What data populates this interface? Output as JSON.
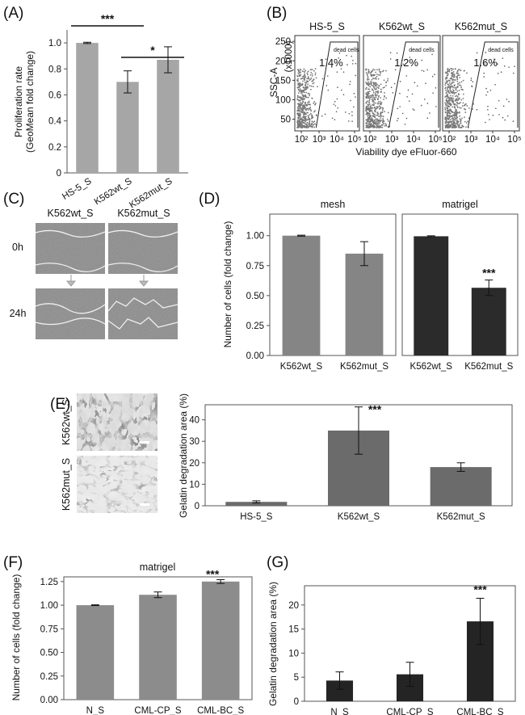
{
  "panels": {
    "A": "(A)",
    "B": "(B)",
    "C": "(C)",
    "D": "(D)",
    "E": "(E)",
    "F": "(F)",
    "G": "(G)"
  },
  "chart_data": [
    {
      "id": "A",
      "type": "bar",
      "categories": [
        "HS-5_S",
        "K562wt_S",
        "K562mut_S"
      ],
      "values": [
        1.0,
        0.7,
        0.87
      ],
      "errors": [
        0.005,
        0.085,
        0.1
      ],
      "ylabel": "Proliferation rate\n(GeoMean fold change)",
      "ylim": [
        0,
        1.1
      ],
      "yticks": [
        "0",
        "0.2",
        "0.4",
        "0.6",
        "0.8",
        "1.0"
      ],
      "ytick_values": [
        0,
        0.2,
        0.4,
        0.6,
        0.8,
        1.0
      ],
      "color": "#a6a6a6",
      "significance": [
        {
          "from": 0,
          "to": 1,
          "label": "***"
        },
        {
          "from": 1,
          "to": 2,
          "label": "*"
        }
      ]
    },
    {
      "id": "B",
      "type": "scatter",
      "samples": [
        {
          "name": "HS-5_S",
          "gate_label": "dead cells",
          "percent": "1.4%"
        },
        {
          "name": "K562wt_S",
          "gate_label": "dead cells",
          "percent": "1.2%"
        },
        {
          "name": "K562mut_S",
          "gate_label": "dead cells",
          "percent": "1.6%"
        }
      ],
      "ylabel": "SSC-A",
      "yunit": "(x1000)",
      "yticks": [
        "50",
        "100",
        "150",
        "200",
        "250"
      ],
      "ytick_values": [
        50,
        100,
        150,
        200,
        250
      ],
      "ylim": [
        20,
        265
      ],
      "xticks": [
        "10²",
        "10³",
        "10⁴",
        "10⁵"
      ],
      "xlabel": "Viability dye eFluor-660"
    },
    {
      "id": "D",
      "type": "bar",
      "subplots": [
        {
          "title": "mesh",
          "categories": [
            "K562wt_S",
            "K562mut_S"
          ],
          "values": [
            1.0,
            0.85
          ],
          "errors": [
            0.004,
            0.1
          ],
          "color": "#858585",
          "stars": [
            "",
            ""
          ]
        },
        {
          "title": "matrigel",
          "categories": [
            "K562wt_S",
            "K562mut_S"
          ],
          "values": [
            0.995,
            0.565
          ],
          "errors": [
            0.004,
            0.065
          ],
          "color": "#2b2b2b",
          "stars": [
            "",
            "***"
          ]
        }
      ],
      "ylabel": "Number of cells (fold change)",
      "ylim": [
        0,
        1.18
      ],
      "yticks": [
        "0.00",
        "0.25",
        "0.50",
        "0.75",
        "1.00"
      ],
      "ytick_values": [
        0,
        0.25,
        0.5,
        0.75,
        1.0
      ]
    },
    {
      "id": "E",
      "type": "bar",
      "categories": [
        "HS-5_S",
        "K562wt_S",
        "K562mut_S"
      ],
      "values": [
        1.8,
        35,
        18
      ],
      "errors": [
        0.5,
        11,
        2
      ],
      "stars": [
        "",
        "***",
        ""
      ],
      "ylabel": "Gelatin degradation area (%)",
      "ylim": [
        0,
        47
      ],
      "yticks": [
        "0",
        "10",
        "20",
        "30",
        "40"
      ],
      "ytick_values": [
        0,
        10,
        20,
        30,
        40
      ],
      "color": "#6b6b6b"
    },
    {
      "id": "F",
      "type": "bar",
      "title": "matrigel",
      "categories": [
        "N_S",
        "CML-CP_S",
        "CML-BC_S"
      ],
      "values": [
        1.0,
        1.11,
        1.25
      ],
      "errors": [
        0.004,
        0.03,
        0.02
      ],
      "stars": [
        "",
        "",
        "***"
      ],
      "ylabel": "Number of cells (fold change)",
      "ylim": [
        0,
        1.3
      ],
      "yticks": [
        "0.00",
        "0.25",
        "0.50",
        "0.75",
        "1.00",
        "1.25"
      ],
      "ytick_values": [
        0,
        0.25,
        0.5,
        0.75,
        1.0,
        1.25
      ],
      "color": "#8c8c8c"
    },
    {
      "id": "G",
      "type": "bar",
      "categories": [
        "N_S",
        "CML-CP_S",
        "CML-BC_S"
      ],
      "values": [
        4.3,
        5.6,
        16.6
      ],
      "errors": [
        1.8,
        2.5,
        4.8
      ],
      "stars": [
        "",
        "",
        "***"
      ],
      "ylabel": "Gelatin degradation area (%)",
      "ylim": [
        0,
        24
      ],
      "yticks": [
        "0",
        "5",
        "10",
        "15",
        "20"
      ],
      "ytick_values": [
        0,
        5,
        10,
        15,
        20
      ],
      "color": "#242424"
    }
  ],
  "micrographs": {
    "C": {
      "columns": [
        "K562wt_S",
        "K562mut_S"
      ],
      "rows": [
        "0h",
        "24h"
      ]
    },
    "E": {
      "rows": [
        "K562wt_S",
        "K562mut_S"
      ]
    }
  }
}
